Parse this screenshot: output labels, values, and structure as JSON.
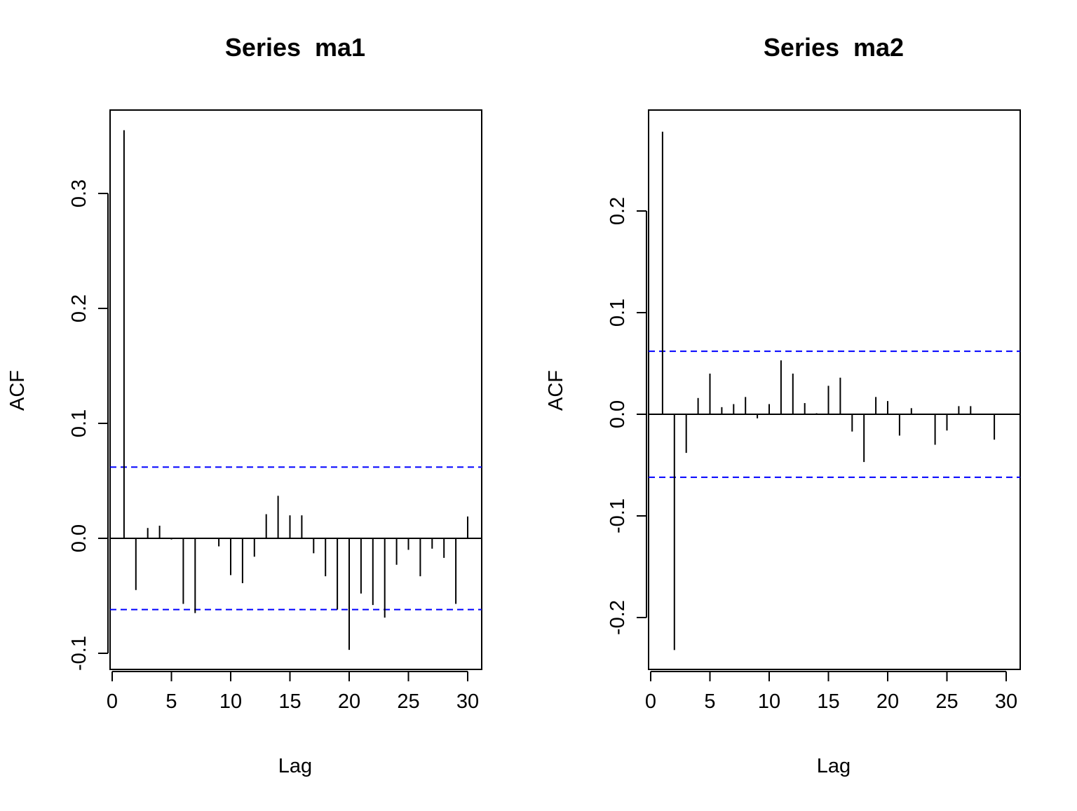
{
  "chart_data": [
    {
      "type": "bar",
      "title": "Series  ma1",
      "xlabel": "Lag",
      "ylabel": "ACF",
      "xlim": [
        0,
        31
      ],
      "ylim": [
        -0.1,
        0.37
      ],
      "xticks": [
        0,
        5,
        10,
        15,
        20,
        25,
        30
      ],
      "yticks": [
        -0.1,
        0.0,
        0.1,
        0.2,
        0.3
      ],
      "xtick_labels": [
        "0",
        "5",
        "10",
        "15",
        "20",
        "25",
        "30"
      ],
      "ytick_labels": [
        "-0.1",
        "0.0",
        "0.1",
        "0.2",
        "0.3"
      ],
      "confidence_bounds": [
        0.062,
        -0.062
      ],
      "confidence_color": "#0000ff",
      "lags": [
        1,
        2,
        3,
        4,
        5,
        6,
        7,
        8,
        9,
        10,
        11,
        12,
        13,
        14,
        15,
        16,
        17,
        18,
        19,
        20,
        21,
        22,
        23,
        24,
        25,
        26,
        27,
        28,
        29,
        30
      ],
      "values": [
        0.355,
        -0.045,
        0.009,
        0.011,
        -0.001,
        -0.057,
        -0.065,
        0.0,
        -0.007,
        -0.032,
        -0.039,
        -0.016,
        0.021,
        0.037,
        0.02,
        0.02,
        -0.013,
        -0.033,
        -0.062,
        -0.097,
        -0.048,
        -0.058,
        -0.069,
        -0.023,
        -0.01,
        -0.033,
        -0.009,
        -0.017,
        -0.057,
        0.019
      ]
    },
    {
      "type": "bar",
      "title": "Series  ma2",
      "xlabel": "Lag",
      "ylabel": "ACF",
      "xlim": [
        0,
        31
      ],
      "ylim": [
        -0.25,
        0.3
      ],
      "xticks": [
        0,
        5,
        10,
        15,
        20,
        25,
        30
      ],
      "yticks": [
        -0.2,
        -0.1,
        0.0,
        0.1,
        0.2
      ],
      "xtick_labels": [
        "0",
        "5",
        "10",
        "15",
        "20",
        "25",
        "30"
      ],
      "ytick_labels": [
        "-0.2",
        "-0.1",
        "0.0",
        "0.1",
        "0.2"
      ],
      "confidence_bounds": [
        0.062,
        -0.062
      ],
      "confidence_color": "#0000ff",
      "lags": [
        1,
        2,
        3,
        4,
        5,
        6,
        7,
        8,
        9,
        10,
        11,
        12,
        13,
        14,
        15,
        16,
        17,
        18,
        19,
        20,
        21,
        22,
        23,
        24,
        25,
        26,
        27,
        28,
        29,
        30
      ],
      "values": [
        0.278,
        -0.232,
        -0.038,
        0.016,
        0.04,
        0.007,
        0.01,
        0.017,
        -0.004,
        0.01,
        0.053,
        0.04,
        0.011,
        0.001,
        0.028,
        0.036,
        -0.017,
        -0.047,
        0.017,
        0.013,
        -0.021,
        0.006,
        0.0,
        -0.03,
        -0.016,
        0.008,
        0.008,
        0.0,
        -0.025,
        0.0
      ]
    }
  ]
}
